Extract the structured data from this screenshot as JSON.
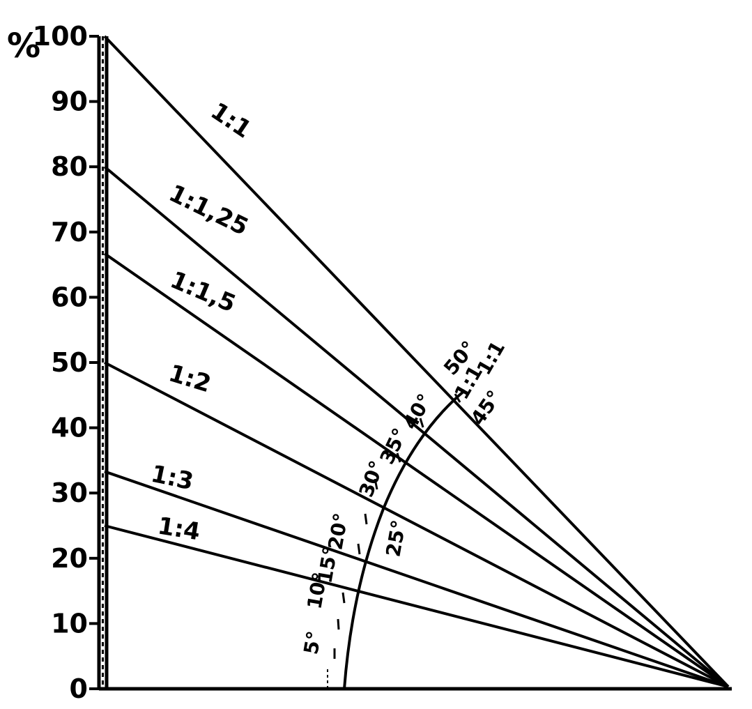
{
  "axis": {
    "unit": "%",
    "ticks": [
      "0",
      "10",
      "20",
      "30",
      "40",
      "50",
      "60",
      "70",
      "80",
      "90",
      "100"
    ]
  },
  "rays": [
    {
      "label": "1:1",
      "percent": 100
    },
    {
      "label": "1:1,25",
      "percent": 80
    },
    {
      "label": "1:1,5",
      "percent": 66.7
    },
    {
      "label": "1:2",
      "percent": 50
    },
    {
      "label": "1:3",
      "percent": 33.3
    },
    {
      "label": "1:4",
      "percent": 25
    }
  ],
  "angle_scale": {
    "labels": [
      "5°",
      "10°",
      "15°",
      "20°",
      "25°",
      "30°",
      "35°",
      "40°",
      "45°",
      "50°"
    ],
    "ratio_marks": [
      "1:1",
      "1:1"
    ]
  }
}
